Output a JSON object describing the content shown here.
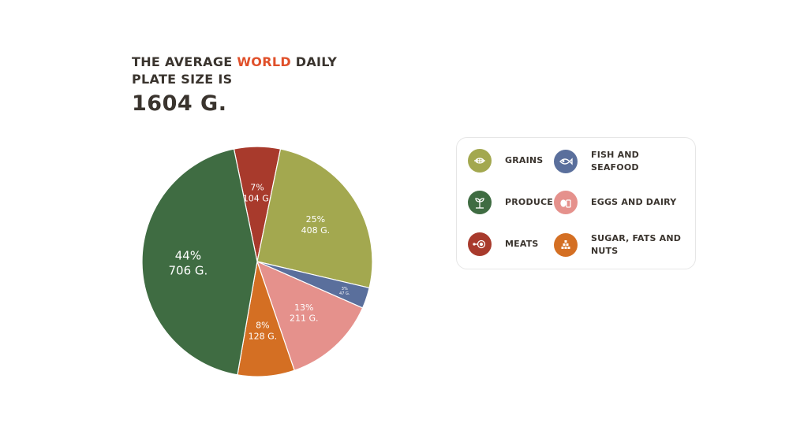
{
  "header": {
    "line1_pre": "THE AVERAGE ",
    "line1_accent": "WORLD",
    "line1_post": " DAILY",
    "line2": "PLATE SIZE IS",
    "total": "1604 G."
  },
  "colors": {
    "accent": "#e0502a",
    "grains": "#a3a84f",
    "fish": "#5a6f9c",
    "eggs": "#e5918c",
    "sugar": "#d46f23",
    "produce": "#3f6c42",
    "meats": "#a83a2c"
  },
  "legend": [
    {
      "label": "GRAINS",
      "color": "#a3a84f",
      "icon": "wheat-icon"
    },
    {
      "label": "FISH AND SEAFOOD",
      "color": "#5a6f9c",
      "icon": "fish-icon"
    },
    {
      "label": "PRODUCE",
      "color": "#3f6c42",
      "icon": "sprout-icon"
    },
    {
      "label": "EGGS AND DAIRY",
      "color": "#e5918c",
      "icon": "egg-icon"
    },
    {
      "label": "MEATS",
      "color": "#a83a2c",
      "icon": "meat-icon"
    },
    {
      "label": "SUGAR, FATS AND NUTS",
      "color": "#d46f23",
      "icon": "sugar-icon"
    }
  ],
  "chart_data": {
    "type": "pie",
    "unit": "G.",
    "slices": [
      {
        "category": "MEATS",
        "percent": "7%",
        "grams": "104 G.",
        "value": 104,
        "color": "#a83a2c"
      },
      {
        "category": "GRAINS",
        "percent": "25%",
        "grams": "408 G.",
        "value": 408,
        "color": "#a3a84f"
      },
      {
        "category": "FISH AND SEAFOOD",
        "percent": "3%",
        "grams": "47 G.",
        "value": 47,
        "color": "#5a6f9c"
      },
      {
        "category": "EGGS AND DAIRY",
        "percent": "13%",
        "grams": "211 G.",
        "value": 211,
        "color": "#e5918c"
      },
      {
        "category": "SUGAR, FATS AND NUTS",
        "percent": "8%",
        "grams": "128 G.",
        "value": 128,
        "color": "#d46f23"
      },
      {
        "category": "PRODUCE",
        "percent": "44%",
        "grams": "706 G.",
        "value": 706,
        "color": "#3f6c42"
      }
    ]
  }
}
